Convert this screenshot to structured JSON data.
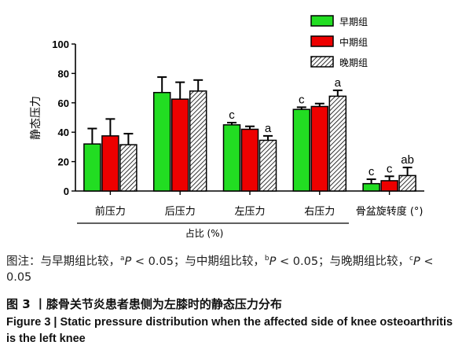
{
  "chart_data": {
    "type": "bar",
    "ylabel": "静态压力",
    "xlabel": "占比 (%)",
    "ylim": [
      0,
      100
    ],
    "yticks": [
      0,
      20,
      40,
      60,
      80,
      100
    ],
    "categories": [
      "前压力",
      "后压力",
      "左压力",
      "右压力",
      "骨盆旋转度 (°)"
    ],
    "series": [
      {
        "name": "早期组",
        "color": "#22dd22",
        "pattern": "solid",
        "values": [
          32,
          67,
          45,
          55.5,
          5
        ],
        "errors": [
          10.5,
          10.5,
          1.5,
          1.5,
          3
        ],
        "annotations": [
          "",
          "",
          "c",
          "c",
          "c"
        ]
      },
      {
        "name": "中期组",
        "color": "#ee0000",
        "pattern": "solid",
        "values": [
          37.5,
          62.5,
          42,
          57.5,
          7
        ],
        "errors": [
          11.5,
          11.5,
          2,
          2,
          3
        ],
        "annotations": [
          "",
          "",
          "",
          "",
          "c"
        ]
      },
      {
        "name": "晚期组",
        "color": "#ffffff",
        "pattern": "hatch",
        "values": [
          31.5,
          68,
          34.5,
          64.5,
          10.5
        ],
        "errors": [
          7.5,
          7.5,
          3,
          4,
          5.5
        ],
        "annotations": [
          "",
          "",
          "a",
          "a",
          "ab"
        ]
      }
    ],
    "legend_position": "top-right",
    "grid": false
  },
  "note": {
    "prefix": "图注：与早期组比较，",
    "sup_a": "a",
    "p1": "P",
    "t1": " < 0.05；与中期组比较，",
    "sup_b": "b",
    "p2": "P",
    "t2": " < 0.05；与晚期组比较，",
    "sup_c": "c",
    "p3": "P",
    "t3": " < 0.05"
  },
  "caption_cn": "图 3  丨膝骨关节炎患者患侧为左膝时的静态压力分布",
  "caption_en": "Figure 3  |  Static pressure distribution when the affected side of knee osteoarthritis is the left knee"
}
